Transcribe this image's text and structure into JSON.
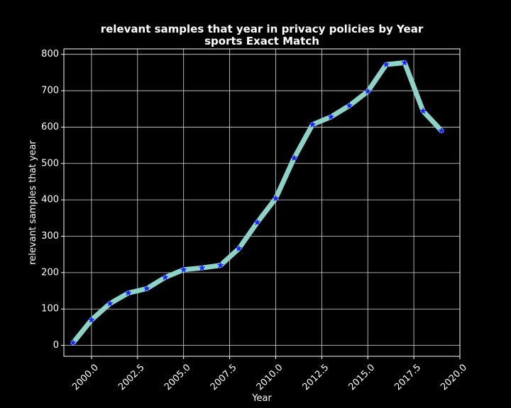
{
  "chart_data": {
    "type": "line",
    "title_lines": [
      "relevant samples that year in privacy policies by Year",
      "sports Exact Match"
    ],
    "xlabel": "Year",
    "ylabel": "relevant samples that year",
    "xlim": [
      1998.5,
      2020.0
    ],
    "ylim": [
      -30,
      815
    ],
    "x_ticks": [
      2000.0,
      2002.5,
      2005.0,
      2007.5,
      2010.0,
      2012.5,
      2015.0,
      2017.5,
      2020.0
    ],
    "x_tick_labels": [
      "2000.0",
      "2002.5",
      "2005.0",
      "2007.5",
      "2010.0",
      "2012.5",
      "2015.0",
      "2017.5",
      "2020.0"
    ],
    "y_ticks": [
      0,
      100,
      200,
      300,
      400,
      500,
      600,
      700,
      800
    ],
    "y_tick_labels": [
      "0",
      "100",
      "200",
      "300",
      "400",
      "500",
      "600",
      "700",
      "800"
    ],
    "grid": true,
    "line_color": "#8dd3c7",
    "marker_color": "#1f22ff",
    "marker": "star",
    "series": [
      {
        "x": [
          1999,
          2000,
          2001,
          2002,
          2003,
          2004,
          2005,
          2006,
          2007,
          2008,
          2009,
          2010,
          2011,
          2012,
          2013,
          2014,
          2015,
          2016,
          2017,
          2018,
          2019
        ],
        "values": [
          7,
          70,
          115,
          144,
          156,
          187,
          208,
          213,
          220,
          266,
          338,
          404,
          515,
          607,
          628,
          659,
          698,
          772,
          777,
          644,
          590
        ]
      }
    ]
  }
}
